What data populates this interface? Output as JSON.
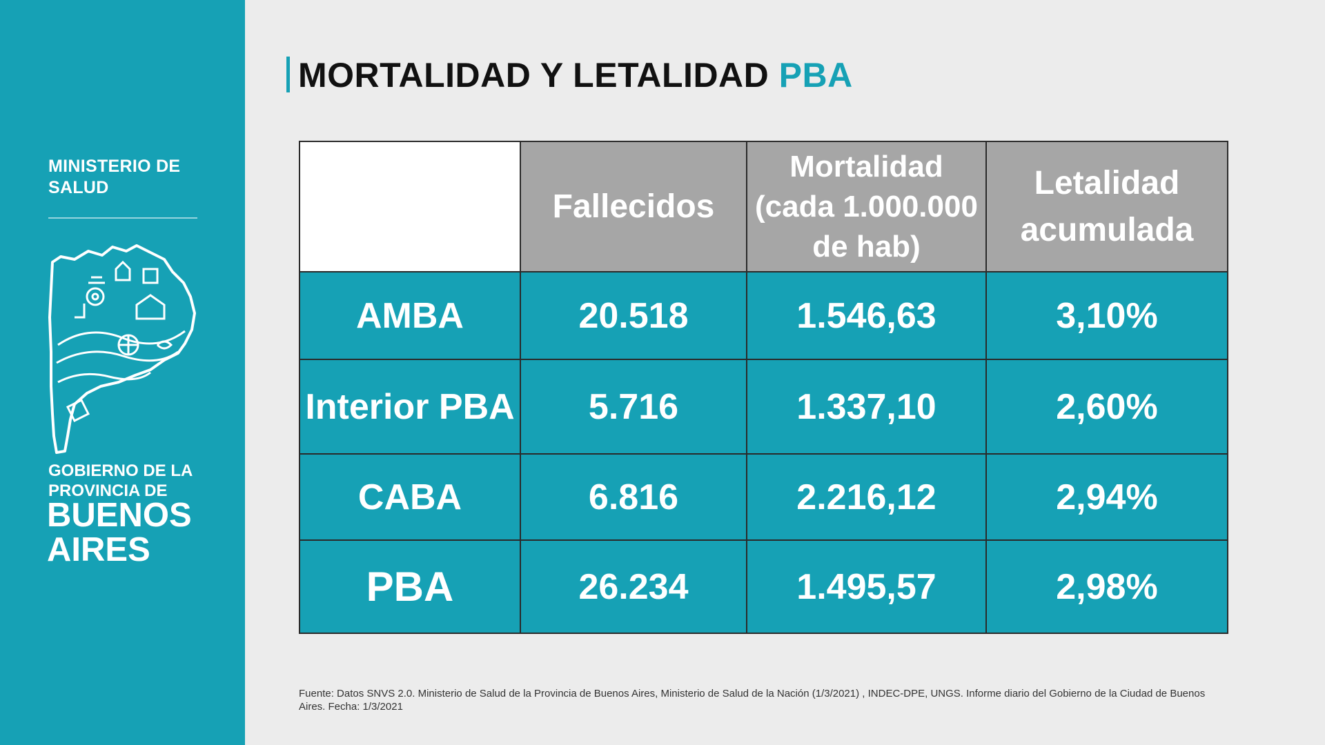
{
  "sidebar": {
    "ministerio": "MINISTERIO DE SALUD",
    "gobierno": "GOBIERNO DE LA PROVINCIA DE",
    "buenos_aires": "BUENOS AIRES"
  },
  "title": {
    "main": "MORTALIDAD Y LETALIDAD",
    "accent": "PBA"
  },
  "table": {
    "headers": {
      "fallecidos": "Fallecidos",
      "mortalidad_line1": "Mortalidad",
      "mortalidad_line2": "(cada 1.000.000",
      "mortalidad_line3": "de hab)",
      "letalidad_line1": "Letalidad",
      "letalidad_line2": "acumulada"
    },
    "rows": [
      {
        "region": "AMBA",
        "fallecidos": "20.518",
        "mortalidad": "1.546,63",
        "letalidad": "3,10%"
      },
      {
        "region": "Interior PBA",
        "fallecidos": "5.716",
        "mortalidad": "1.337,10",
        "letalidad": "2,60%"
      },
      {
        "region": "CABA",
        "fallecidos": "6.816",
        "mortalidad": "2.216,12",
        "letalidad": "2,94%"
      },
      {
        "region": "PBA",
        "fallecidos": "26.234",
        "mortalidad": "1.495,57",
        "letalidad": "2,98%"
      }
    ]
  },
  "source": "Fuente: Datos SNVS 2.0. Ministerio de Salud de la Provincia de Buenos Aires, Ministerio de Salud de la Nación (1/3/2021) , INDEC-DPE, UNGS. Informe diario del Gobierno de la Ciudad de Buenos Aires. Fecha: 1/3/2021",
  "colors": {
    "brand": "#16a1b5",
    "header_gray": "#a6a6a6",
    "background": "#ececec"
  }
}
